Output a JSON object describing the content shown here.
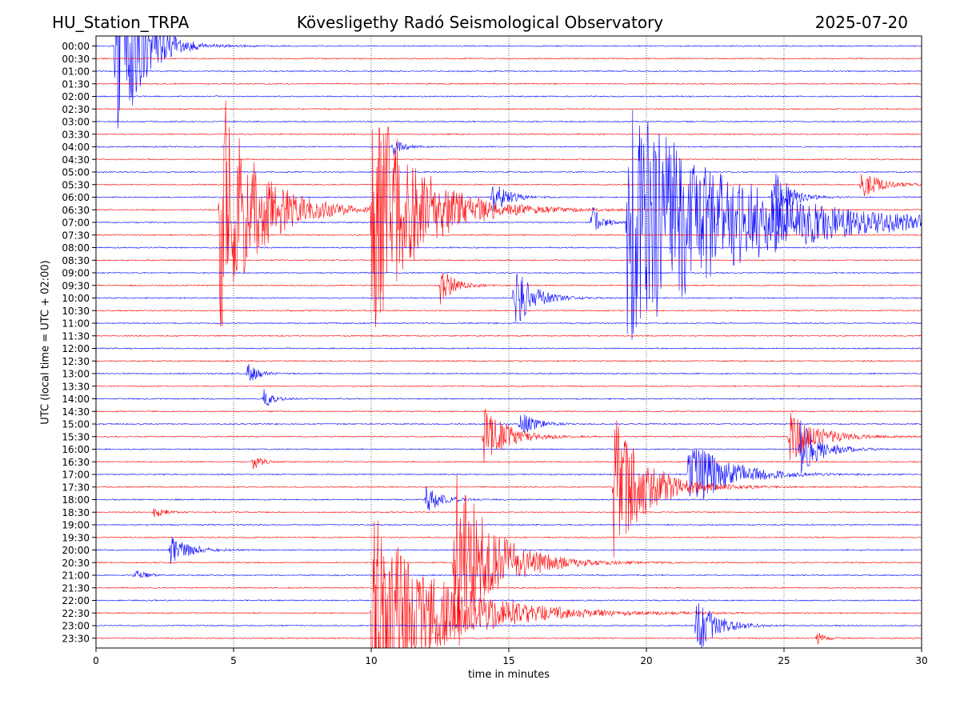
{
  "header": {
    "station": "HU_Station_TRPA",
    "title": "Kövesligethy Radó Seismological Observatory",
    "date": "2025-07-20"
  },
  "chart_data": {
    "type": "line",
    "title": "Kövesligethy Radó Seismological Observatory",
    "xlabel": "time in minutes",
    "ylabel": "UTC (local time = UTC + 02:00)",
    "xlim": [
      0,
      30
    ],
    "x_ticks": [
      0,
      5,
      10,
      15,
      20,
      25,
      30
    ],
    "y_ticks": [
      "00:00",
      "00:30",
      "01:00",
      "01:30",
      "02:00",
      "02:30",
      "03:00",
      "03:30",
      "04:00",
      "04:30",
      "05:00",
      "05:30",
      "06:00",
      "06:30",
      "07:00",
      "07:30",
      "08:00",
      "08:30",
      "09:00",
      "09:30",
      "10:00",
      "10:30",
      "11:00",
      "11:30",
      "12:00",
      "12:30",
      "13:00",
      "13:30",
      "14:00",
      "14:30",
      "15:00",
      "15:30",
      "16:00",
      "16:30",
      "17:00",
      "17:30",
      "18:00",
      "18:30",
      "19:00",
      "19:30",
      "20:00",
      "20:30",
      "21:00",
      "21:30",
      "22:00",
      "22:30",
      "23:00",
      "23:30"
    ],
    "grid": "vertical dotted",
    "series_colors": [
      "#0000ff",
      "#ff0000"
    ],
    "events": [
      {
        "row": "00:00",
        "minute": 0.7,
        "amplitude": 1.0,
        "duration_min": 2.5
      },
      {
        "row": "04:00",
        "minute": 10.8,
        "amplitude": 0.08,
        "duration_min": 1.0
      },
      {
        "row": "05:30",
        "minute": 27.8,
        "amplitude": 0.12,
        "duration_min": 2.0
      },
      {
        "row": "06:00",
        "minute": 14.4,
        "amplitude": 0.15,
        "duration_min": 1.5
      },
      {
        "row": "06:00",
        "minute": 24.6,
        "amplitude": 0.3,
        "duration_min": 1.5
      },
      {
        "row": "06:30",
        "minute": 4.5,
        "amplitude": 1.0,
        "duration_min": 4.0
      },
      {
        "row": "06:30",
        "minute": 10.0,
        "amplitude": 1.0,
        "duration_min": 5.0
      },
      {
        "row": "07:00",
        "minute": 19.3,
        "amplitude": 1.0,
        "duration_min": 11.0
      },
      {
        "row": "07:00",
        "minute": 18.0,
        "amplitude": 0.15,
        "duration_min": 1.0
      },
      {
        "row": "09:30",
        "minute": 12.5,
        "amplitude": 0.15,
        "duration_min": 1.5
      },
      {
        "row": "10:00",
        "minute": 15.2,
        "amplitude": 0.25,
        "duration_min": 2.0
      },
      {
        "row": "13:00",
        "minute": 5.5,
        "amplitude": 0.1,
        "duration_min": 1.0
      },
      {
        "row": "14:00",
        "minute": 6.1,
        "amplitude": 0.08,
        "duration_min": 1.0
      },
      {
        "row": "15:00",
        "minute": 15.4,
        "amplitude": 0.12,
        "duration_min": 1.5
      },
      {
        "row": "15:30",
        "minute": 14.1,
        "amplitude": 0.25,
        "duration_min": 2.5
      },
      {
        "row": "15:30",
        "minute": 25.2,
        "amplitude": 0.2,
        "duration_min": 3.0
      },
      {
        "row": "16:00",
        "minute": 25.6,
        "amplitude": 0.25,
        "duration_min": 2.0
      },
      {
        "row": "16:30",
        "minute": 5.7,
        "amplitude": 0.06,
        "duration_min": 1.0
      },
      {
        "row": "17:00",
        "minute": 21.5,
        "amplitude": 0.3,
        "duration_min": 4.0
      },
      {
        "row": "17:30",
        "minute": 18.8,
        "amplitude": 0.6,
        "duration_min": 3.5
      },
      {
        "row": "18:00",
        "minute": 12.0,
        "amplitude": 0.12,
        "duration_min": 1.5
      },
      {
        "row": "18:30",
        "minute": 2.1,
        "amplitude": 0.05,
        "duration_min": 1.0
      },
      {
        "row": "20:00",
        "minute": 2.7,
        "amplitude": 0.12,
        "duration_min": 2.0
      },
      {
        "row": "20:30",
        "minute": 13.0,
        "amplitude": 0.8,
        "duration_min": 4.0
      },
      {
        "row": "21:00",
        "minute": 1.4,
        "amplitude": 0.05,
        "duration_min": 1.0
      },
      {
        "row": "22:30",
        "minute": 10.0,
        "amplitude": 0.8,
        "duration_min": 7.0
      },
      {
        "row": "23:00",
        "minute": 21.8,
        "amplitude": 0.25,
        "duration_min": 2.0
      },
      {
        "row": "23:30",
        "minute": 26.2,
        "amplitude": 0.05,
        "duration_min": 0.8
      }
    ]
  }
}
